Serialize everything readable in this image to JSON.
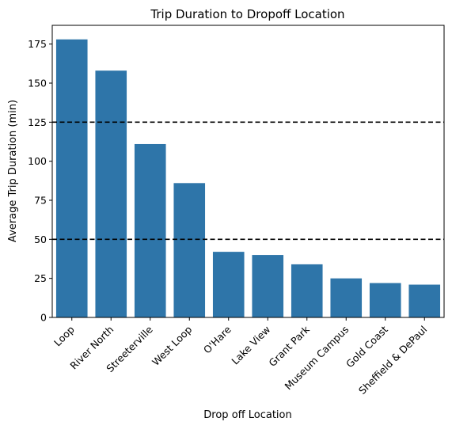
{
  "chart_data": {
    "type": "bar",
    "title": "Trip Duration to Dropoff Location",
    "xlabel": "Drop off Location",
    "ylabel": "Average Trip Duration (min)",
    "categories": [
      "Loop",
      "River North",
      "Streeterville",
      "West Loop",
      "O'Hare",
      "Lake View",
      "Grant Park",
      "Museum Campus",
      "Gold Coast",
      "Sheffield & DePaul"
    ],
    "values": [
      178,
      158,
      111,
      86,
      42,
      40,
      34,
      25,
      22,
      21
    ],
    "ylim": [
      0,
      187
    ],
    "yticks": [
      0,
      25,
      50,
      75,
      100,
      125,
      150,
      175
    ],
    "reference_lines": [
      125,
      50
    ],
    "bar_color": "#2e75a9",
    "reference_line_color": "#000000",
    "grid": false,
    "legend": "none"
  }
}
